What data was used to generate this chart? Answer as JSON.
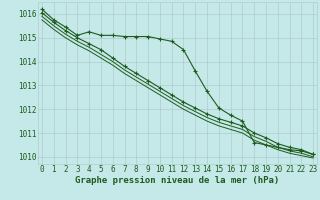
{
  "xlabel": "Graphe pression niveau de la mer (hPa)",
  "background_color": "#c5e8e8",
  "grid_color": "#b0cccc",
  "line_color": "#1e5c1e",
  "x": [
    0,
    1,
    2,
    3,
    4,
    5,
    6,
    7,
    8,
    9,
    10,
    11,
    12,
    13,
    14,
    15,
    16,
    17,
    18,
    19,
    20,
    21,
    22,
    23
  ],
  "line1_marked": [
    1016.2,
    1015.75,
    1015.45,
    1015.1,
    1015.25,
    1015.1,
    1015.1,
    1015.05,
    1015.05,
    1015.05,
    1014.95,
    1014.85,
    1014.5,
    1013.6,
    1012.75,
    1012.05,
    1011.75,
    1011.5,
    1010.6,
    1010.5,
    1010.4,
    1010.3,
    1010.25,
    1010.1
  ],
  "line2_linear": [
    1016.05,
    1015.65,
    1015.3,
    1015.0,
    1014.75,
    1014.5,
    1014.15,
    1013.8,
    1013.5,
    1013.2,
    1012.9,
    1012.6,
    1012.3,
    1012.05,
    1011.8,
    1011.6,
    1011.45,
    1011.3,
    1011.0,
    1010.8,
    1010.55,
    1010.4,
    1010.3,
    1010.1
  ],
  "line3_linear": [
    1015.9,
    1015.5,
    1015.15,
    1014.85,
    1014.6,
    1014.3,
    1014.0,
    1013.65,
    1013.35,
    1013.05,
    1012.75,
    1012.45,
    1012.15,
    1011.9,
    1011.65,
    1011.45,
    1011.3,
    1011.15,
    1010.85,
    1010.65,
    1010.4,
    1010.25,
    1010.15,
    1010.0
  ],
  "line4_linear": [
    1015.75,
    1015.35,
    1015.0,
    1014.7,
    1014.45,
    1014.15,
    1013.85,
    1013.5,
    1013.2,
    1012.9,
    1012.6,
    1012.3,
    1012.0,
    1011.75,
    1011.5,
    1011.3,
    1011.15,
    1011.0,
    1010.7,
    1010.5,
    1010.3,
    1010.15,
    1010.05,
    1009.95
  ],
  "ylim": [
    1009.7,
    1016.5
  ],
  "yticks": [
    1010,
    1011,
    1012,
    1013,
    1014,
    1015,
    1016
  ],
  "xticks": [
    0,
    1,
    2,
    3,
    4,
    5,
    6,
    7,
    8,
    9,
    10,
    11,
    12,
    13,
    14,
    15,
    16,
    17,
    18,
    19,
    20,
    21,
    22,
    23
  ],
  "tick_fontsize": 5.5,
  "label_fontsize": 6.5
}
